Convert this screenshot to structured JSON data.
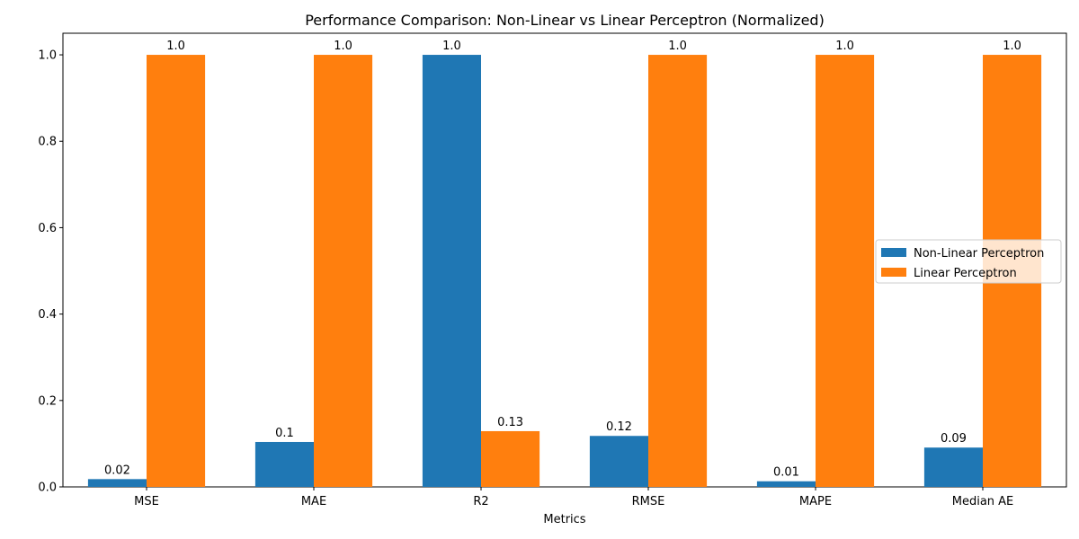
{
  "chart_data": {
    "type": "bar",
    "title": "Performance Comparison: Non-Linear vs Linear Perceptron (Normalized)",
    "xlabel": "Metrics",
    "ylabel": "",
    "categories": [
      "MSE",
      "MAE",
      "R2",
      "RMSE",
      "MAPE",
      "Median AE"
    ],
    "ylim": [
      0,
      1.05
    ],
    "yticks": [
      "0.0",
      "0.2",
      "0.4",
      "0.6",
      "0.8",
      "1.0"
    ],
    "grid": false,
    "legend_position": "center-right",
    "series": [
      {
        "name": "Non-Linear Perceptron",
        "color": "#1f77b4",
        "values": [
          0.018,
          0.104,
          1.0,
          0.118,
          0.013,
          0.091
        ],
        "labels": [
          "0.02",
          "0.1",
          "1.0",
          "0.12",
          "0.01",
          "0.09"
        ]
      },
      {
        "name": "Linear Perceptron",
        "color": "#ff7f0e",
        "values": [
          1.0,
          1.0,
          0.129,
          1.0,
          1.0,
          1.0
        ],
        "labels": [
          "1.0",
          "1.0",
          "0.13",
          "1.0",
          "1.0",
          "1.0"
        ]
      }
    ]
  }
}
